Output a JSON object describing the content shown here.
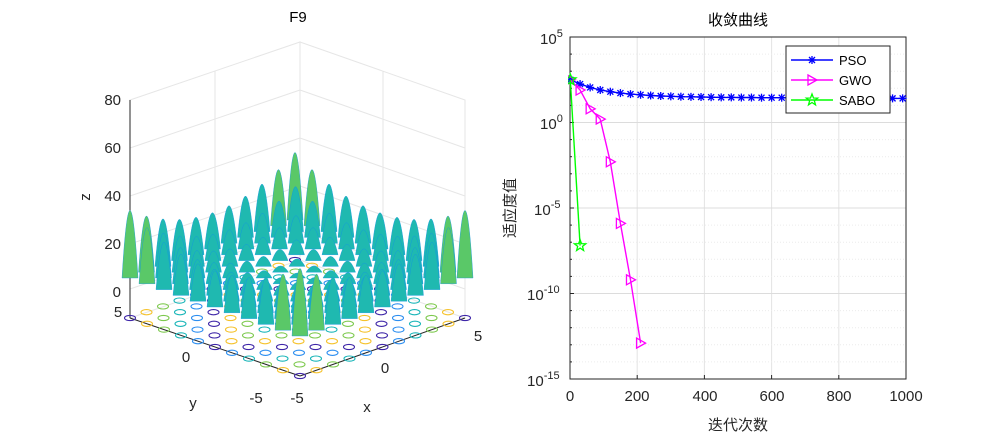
{
  "chart_data": [
    {
      "type": "surface3d",
      "title": "F9",
      "xlabel": "x",
      "ylabel": "y",
      "zlabel": "z",
      "x_ticks": [
        "-5",
        "0",
        "5"
      ],
      "y_ticks": [
        "-5",
        "0",
        "5"
      ],
      "z_ticks": [
        "0",
        "20",
        "40",
        "60",
        "80"
      ],
      "xlim": [
        -5,
        5
      ],
      "ylim": [
        -5,
        5
      ],
      "zlim": [
        0,
        80
      ],
      "function": "Rastrigin: z = sum(x_i^2 - 10cos(2*pi*x_i) + 10)",
      "colormap": "parula",
      "contour_projection": true
    },
    {
      "type": "line",
      "title": "收敛曲线",
      "xlabel": "迭代次数",
      "ylabel": "适应度值",
      "yscale": "log",
      "xlim": [
        0,
        1000
      ],
      "ylim_exponent": [
        -15,
        5
      ],
      "x_ticks": [
        "0",
        "200",
        "400",
        "600",
        "800",
        "1000"
      ],
      "y_ticks": [
        {
          "base": "10",
          "exp": "5"
        },
        {
          "base": "10",
          "exp": "0"
        },
        {
          "base": "10",
          "exp": "-5"
        },
        {
          "base": "10",
          "exp": "-10"
        },
        {
          "base": "10",
          "exp": "-15"
        }
      ],
      "legend_position": "top-right",
      "series": [
        {
          "name": "PSO",
          "color": "#0000ff",
          "marker": "asterisk",
          "x": [
            1,
            30,
            60,
            90,
            120,
            150,
            180,
            210,
            240,
            270,
            300,
            330,
            360,
            390,
            420,
            450,
            480,
            510,
            540,
            570,
            600,
            630,
            660,
            690,
            720,
            750,
            780,
            810,
            840,
            870,
            900,
            930,
            960,
            990
          ],
          "log10_y": [
            2.5,
            2.25,
            2.05,
            1.9,
            1.8,
            1.72,
            1.66,
            1.62,
            1.58,
            1.55,
            1.53,
            1.51,
            1.5,
            1.49,
            1.48,
            1.47,
            1.47,
            1.46,
            1.46,
            1.45,
            1.45,
            1.45,
            1.44,
            1.44,
            1.44,
            1.43,
            1.43,
            1.43,
            1.42,
            1.42,
            1.42,
            1.42,
            1.41,
            1.41
          ]
        },
        {
          "name": "GWO",
          "color": "#ff00ff",
          "marker": "triangle-right",
          "x": [
            1,
            30,
            60,
            90,
            120,
            150,
            180,
            210
          ],
          "log10_y": [
            2.5,
            1.9,
            0.8,
            0.2,
            -2.3,
            -5.9,
            -9.2,
            -12.9
          ]
        },
        {
          "name": "SABO",
          "color": "#00ff00",
          "marker": "pentagram",
          "x": [
            1,
            30
          ],
          "log10_y": [
            2.5,
            -7.2
          ]
        }
      ]
    }
  ]
}
